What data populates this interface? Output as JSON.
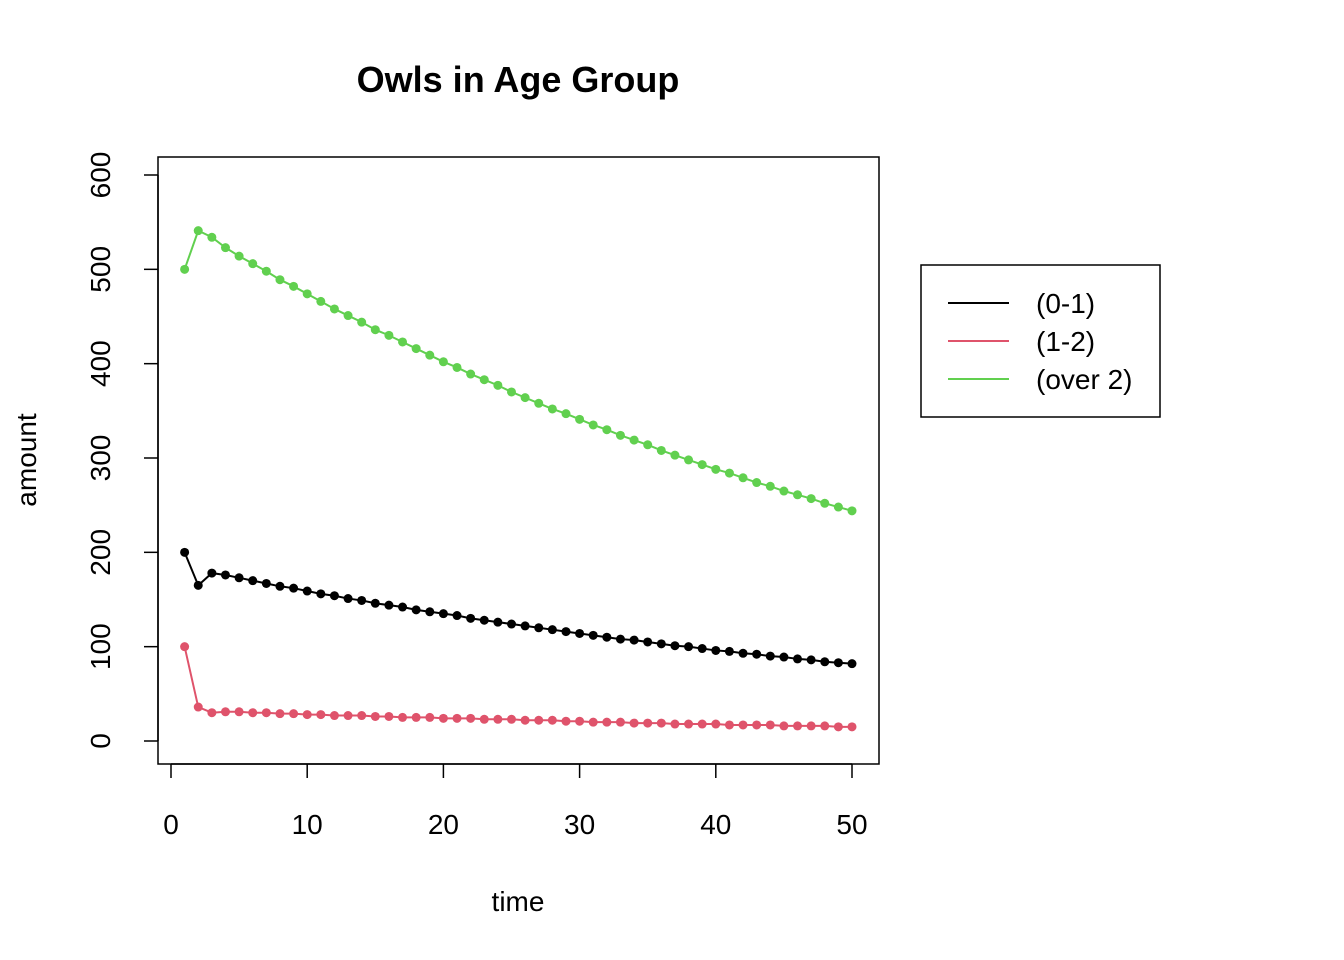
{
  "chart_data": {
    "type": "line",
    "title": "Owls in Age Group",
    "xlabel": "time",
    "ylabel": "amount",
    "xlim": [
      0,
      50
    ],
    "ylim": [
      0,
      600
    ],
    "x_ticks": [
      0,
      10,
      20,
      30,
      40,
      50
    ],
    "y_ticks": [
      0,
      100,
      200,
      300,
      400,
      500,
      600
    ],
    "x_tick_labels": [
      "0",
      "10",
      "20",
      "30",
      "40",
      "50"
    ],
    "y_tick_labels": [
      "0",
      "100",
      "200",
      "300",
      "400",
      "500",
      "600"
    ],
    "grid": false,
    "legend_position": "right",
    "x": [
      1,
      2,
      3,
      4,
      5,
      6,
      7,
      8,
      9,
      10,
      11,
      12,
      13,
      14,
      15,
      16,
      17,
      18,
      19,
      20,
      21,
      22,
      23,
      24,
      25,
      26,
      27,
      28,
      29,
      30,
      31,
      32,
      33,
      34,
      35,
      36,
      37,
      38,
      39,
      40,
      41,
      42,
      43,
      44,
      45,
      46,
      47,
      48,
      49,
      50
    ],
    "series": [
      {
        "name": "(0-1)",
        "color": "#000000",
        "values": [
          200,
          165,
          178,
          176,
          173,
          170,
          167,
          164,
          162,
          159,
          156,
          154,
          151,
          149,
          146,
          144,
          142,
          139,
          137,
          135,
          133,
          130,
          128,
          126,
          124,
          122,
          120,
          118,
          116,
          114,
          112,
          110,
          108,
          107,
          105,
          103,
          101,
          100,
          98,
          96,
          95,
          93,
          92,
          90,
          89,
          87,
          86,
          84,
          83,
          82
        ]
      },
      {
        "name": "(1-2)",
        "color": "#DF536B",
        "values": [
          100,
          36,
          30,
          31,
          31,
          30,
          30,
          29,
          29,
          28,
          28,
          27,
          27,
          27,
          26,
          26,
          25,
          25,
          25,
          24,
          24,
          24,
          23,
          23,
          23,
          22,
          22,
          22,
          21,
          21,
          20,
          20,
          20,
          19,
          19,
          19,
          18,
          18,
          18,
          18,
          17,
          17,
          17,
          17,
          16,
          16,
          16,
          16,
          15,
          15
        ]
      },
      {
        "name": "(over 2)",
        "color": "#61D04F",
        "values": [
          500,
          541,
          534,
          523,
          514,
          506,
          498,
          489,
          482,
          474,
          466,
          458,
          451,
          444,
          436,
          430,
          423,
          416,
          409,
          402,
          396,
          389,
          383,
          377,
          370,
          364,
          358,
          352,
          347,
          341,
          335,
          330,
          324,
          319,
          314,
          308,
          303,
          298,
          293,
          288,
          284,
          279,
          274,
          270,
          265,
          261,
          257,
          252,
          248,
          244
        ]
      }
    ]
  }
}
